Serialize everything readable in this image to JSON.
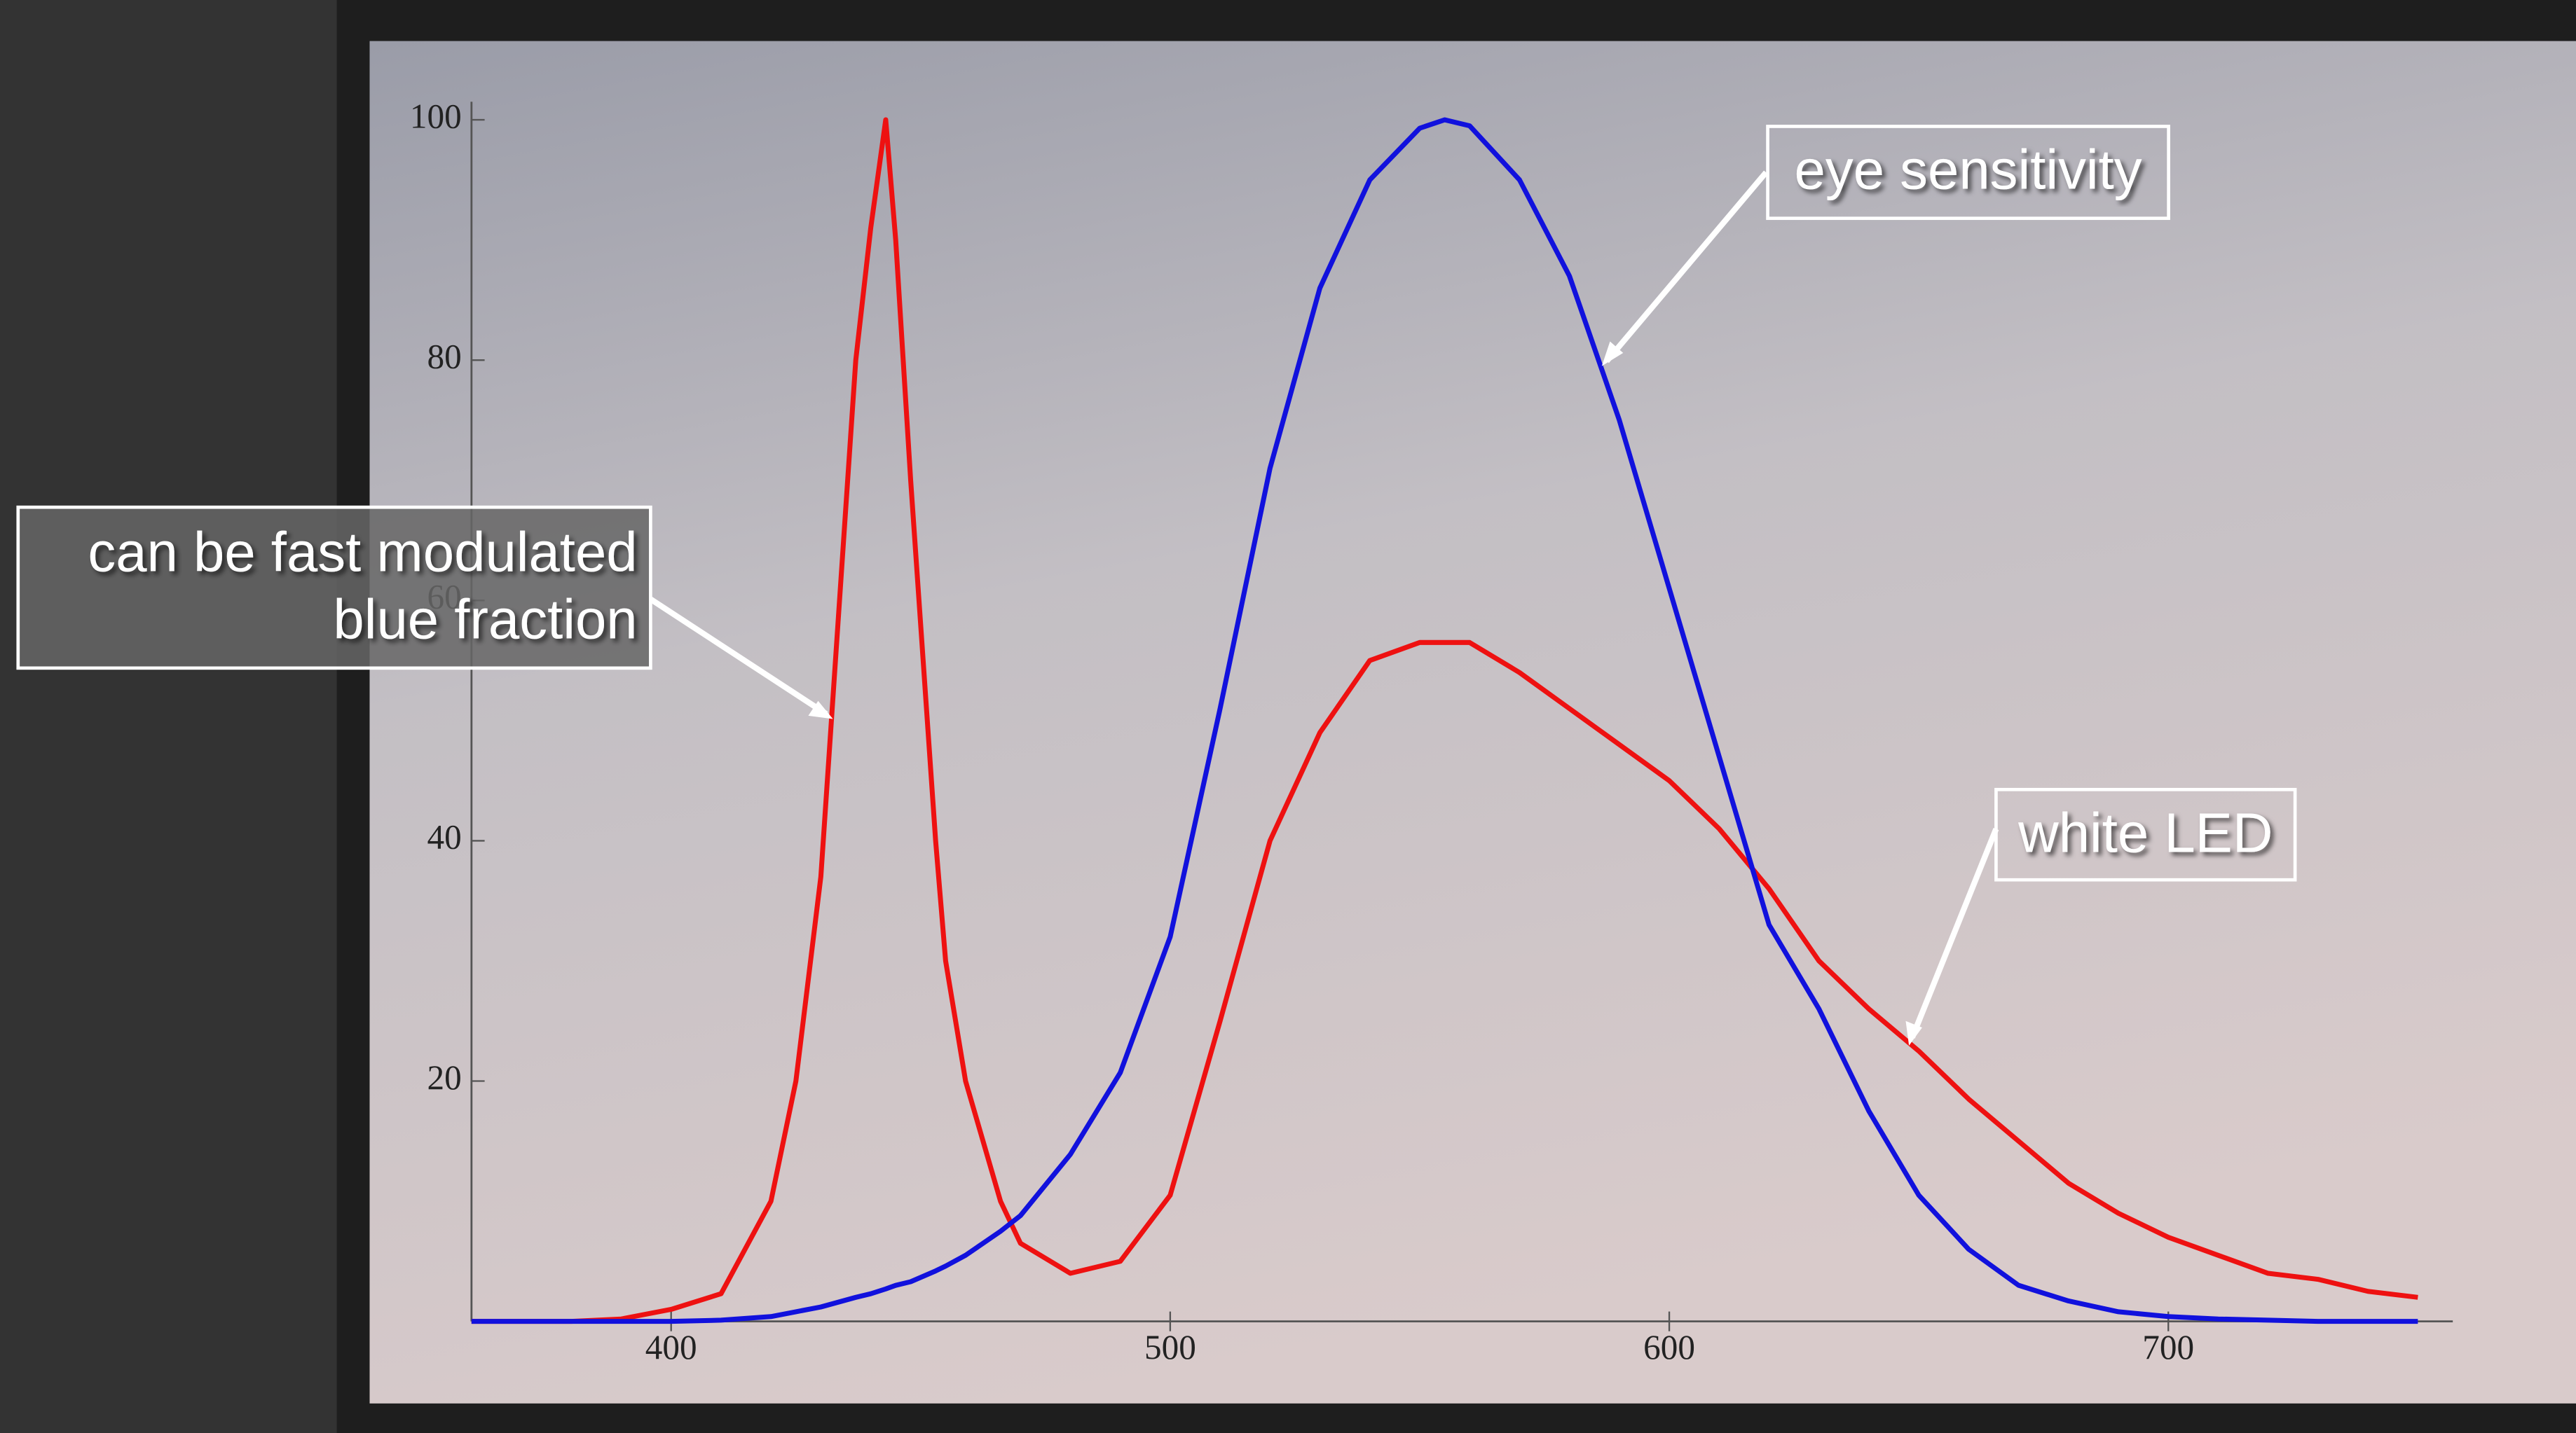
{
  "chart_data": {
    "type": "line",
    "x": [
      360,
      370,
      380,
      390,
      400,
      410,
      420,
      425,
      430,
      437,
      440,
      443,
      445,
      448,
      453,
      455,
      459,
      466,
      470,
      480,
      490,
      500,
      510,
      520,
      530,
      540,
      550,
      555,
      560,
      570,
      580,
      590,
      600,
      610,
      620,
      630,
      640,
      650,
      660,
      670,
      680,
      690,
      700,
      710,
      720,
      730,
      740,
      750
    ],
    "series": [
      {
        "name": "white LED",
        "color": "#ee1111",
        "values": [
          0,
          0,
          0,
          0.2,
          1,
          2.3,
          10,
          20,
          37,
          80,
          91,
          100,
          90,
          70,
          40,
          30,
          20,
          10,
          6.5,
          4,
          5,
          10.5,
          25,
          40,
          49,
          55,
          56.5,
          56.5,
          56.5,
          54,
          51,
          48,
          45,
          41,
          36,
          30,
          26,
          22.5,
          18.5,
          15,
          11.5,
          9,
          7,
          5.5,
          4,
          3.5,
          2.5,
          2
        ]
      },
      {
        "name": "eye sensitivity",
        "color": "#1111dd",
        "values": [
          0,
          0,
          0,
          0,
          0,
          0.1,
          0.4,
          0.8,
          1.2,
          2,
          2.3,
          2.7,
          3,
          3.3,
          4.2,
          4.6,
          5.5,
          7.5,
          8.8,
          13.9,
          20.7,
          32,
          51,
          71,
          86,
          95,
          99.3,
          100,
          99.5,
          95,
          87,
          75,
          61,
          47,
          33,
          26,
          17.5,
          10.5,
          6,
          3,
          1.7,
          0.8,
          0.4,
          0.2,
          0.1,
          0,
          0,
          0
        ]
      }
    ],
    "xlim": [
      360,
      757
    ],
    "ylim": [
      0,
      101.5
    ],
    "xticks": [
      400,
      500,
      600,
      700
    ],
    "yticks": [
      20,
      40,
      60,
      80,
      100
    ],
    "annotations": [
      {
        "lines": [
          "can be fast modulated",
          "blue fraction"
        ]
      }
    ]
  }
}
